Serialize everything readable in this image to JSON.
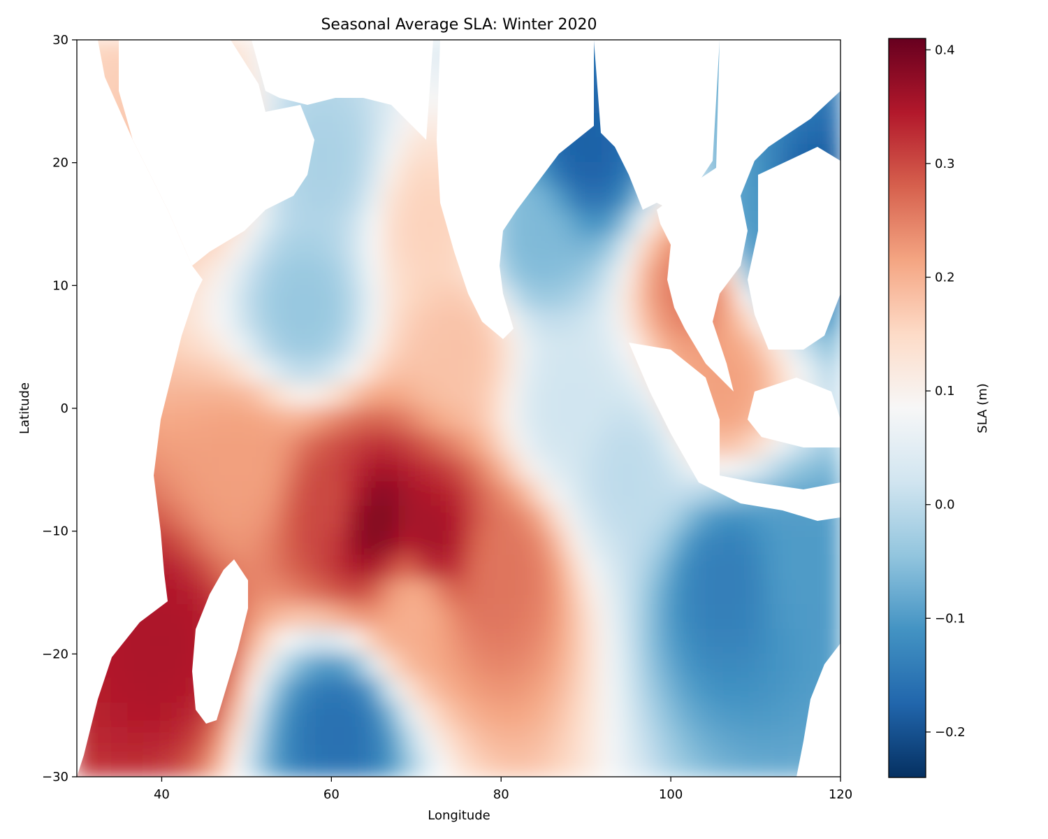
{
  "chart_data": {
    "type": "heatmap",
    "title": "Seasonal Average SLA: Winter 2020",
    "xlabel": "Longitude",
    "ylabel": "Latitude",
    "xlim": [
      30,
      120
    ],
    "ylim": [
      -30,
      30
    ],
    "xticks": [
      40,
      60,
      80,
      100,
      120
    ],
    "yticks": [
      30,
      20,
      10,
      0,
      -10,
      -20,
      -30
    ],
    "xtick_labels": [
      "40",
      "60",
      "80",
      "100",
      "120"
    ],
    "ytick_labels": [
      "30",
      "20",
      "10",
      "0",
      "−10",
      "−20",
      "−30"
    ],
    "colormap": "RdBu_r",
    "colorbar": {
      "label": "SLA (m)",
      "range": [
        -0.24,
        0.41
      ],
      "ticks": [
        0.4,
        0.3,
        0.2,
        0.1,
        0.0,
        -0.1,
        -0.2
      ],
      "tick_labels": [
        "0.4",
        "0.3",
        "0.2",
        "0.1",
        "0.0",
        "−0.1",
        "−0.2"
      ]
    },
    "field_anchors": [
      {
        "lon": 65,
        "lat": -9.5,
        "sla": 0.39
      },
      {
        "lon": 72,
        "lat": -11,
        "sla": 0.36
      },
      {
        "lon": 60,
        "lat": -8,
        "sla": 0.3
      },
      {
        "lon": 50,
        "lat": -5,
        "sla": 0.22
      },
      {
        "lon": 80,
        "lat": -13,
        "sla": 0.26
      },
      {
        "lon": 70,
        "lat": -16,
        "sla": 0.2
      },
      {
        "lon": 40,
        "lat": -19,
        "sla": 0.35
      },
      {
        "lon": 103,
        "lat": 10,
        "sla": 0.26
      },
      {
        "lon": 106,
        "lat": 2,
        "sla": 0.22
      },
      {
        "lon": 116,
        "lat": 15.5,
        "sla": -0.2
      },
      {
        "lon": 110,
        "lat": 15,
        "sla": -0.1
      },
      {
        "lon": 107,
        "lat": -14,
        "sla": -0.14
      },
      {
        "lon": 115,
        "lat": -13,
        "sla": -0.1
      },
      {
        "lon": 90,
        "lat": 21,
        "sla": -0.18
      },
      {
        "lon": 84,
        "lat": 14,
        "sla": -0.06
      },
      {
        "lon": 61,
        "lat": -26,
        "sla": -0.16
      },
      {
        "lon": 57,
        "lat": 8,
        "sla": -0.04
      },
      {
        "lon": 59,
        "lat": 20,
        "sla": -0.02
      },
      {
        "lon": 88,
        "lat": 0,
        "sla": 0.02
      },
      {
        "lon": 95,
        "lat": -5,
        "sla": 0.0
      },
      {
        "lon": 45,
        "lat": 20,
        "sla": 0.18
      },
      {
        "lon": 72,
        "lat": 15,
        "sla": 0.16
      },
      {
        "lon": 75,
        "lat": 5,
        "sla": 0.18
      }
    ]
  }
}
